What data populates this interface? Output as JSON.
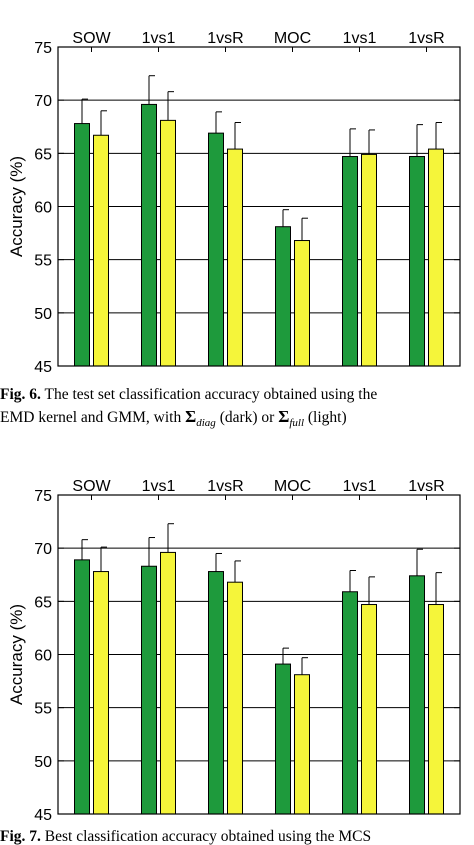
{
  "colors": {
    "dark": "#1e9a3c",
    "light": "#f5f53a",
    "axis": "#000000",
    "grid": "#000000"
  },
  "chart_data": [
    {
      "type": "bar",
      "categories": [
        "SOW",
        "1vs1",
        "1vsR",
        "MOC",
        "1vs1",
        "1vsR"
      ],
      "series": [
        {
          "values": [
            67.8,
            69.6,
            66.9,
            58.1,
            64.7,
            64.7
          ],
          "errors": [
            2.3,
            2.7,
            2.0,
            1.6,
            2.6,
            3.0
          ]
        },
        {
          "values": [
            66.7,
            68.1,
            65.4,
            56.8,
            64.9,
            65.4
          ],
          "errors": [
            2.3,
            2.7,
            2.5,
            2.1,
            2.3,
            2.5
          ]
        }
      ],
      "title": "",
      "xlabel": "",
      "ylabel": "Accuracy (%)",
      "ylim": [
        45,
        75
      ],
      "yticks": [
        45,
        50,
        55,
        60,
        65,
        70,
        75
      ],
      "grid_y": [
        50,
        55,
        60,
        65,
        70
      ]
    },
    {
      "type": "bar",
      "categories": [
        "SOW",
        "1vs1",
        "1vsR",
        "MOC",
        "1vs1",
        "1vsR"
      ],
      "series": [
        {
          "values": [
            68.9,
            68.3,
            67.8,
            59.1,
            65.9,
            67.4
          ],
          "errors": [
            1.9,
            2.7,
            1.7,
            1.5,
            2.0,
            2.5
          ]
        },
        {
          "values": [
            67.8,
            69.6,
            66.8,
            58.1,
            64.7,
            64.7
          ],
          "errors": [
            2.3,
            2.7,
            2.0,
            1.6,
            2.6,
            3.0
          ]
        }
      ],
      "title": "",
      "xlabel": "",
      "ylabel": "Accuracy (%)",
      "ylim": [
        45,
        75
      ],
      "yticks": [
        45,
        50,
        55,
        60,
        65,
        70,
        75
      ],
      "grid_y": [
        50,
        55,
        60,
        65,
        70
      ]
    }
  ],
  "captions": {
    "fig6": {
      "label": "Fig. 6.",
      "line1_text": " The test set classification accuracy obtained using the",
      "line2_pre": "EMD kernel and GMM, with ",
      "sigma": "Σ",
      "sub_diag": "diag",
      "mid": " (dark) or ",
      "sub_full": "full",
      "post": " (light)"
    },
    "fig7": {
      "label": "Fig. 7.",
      "text": " Best classification accuracy obtained using the MCS"
    }
  }
}
